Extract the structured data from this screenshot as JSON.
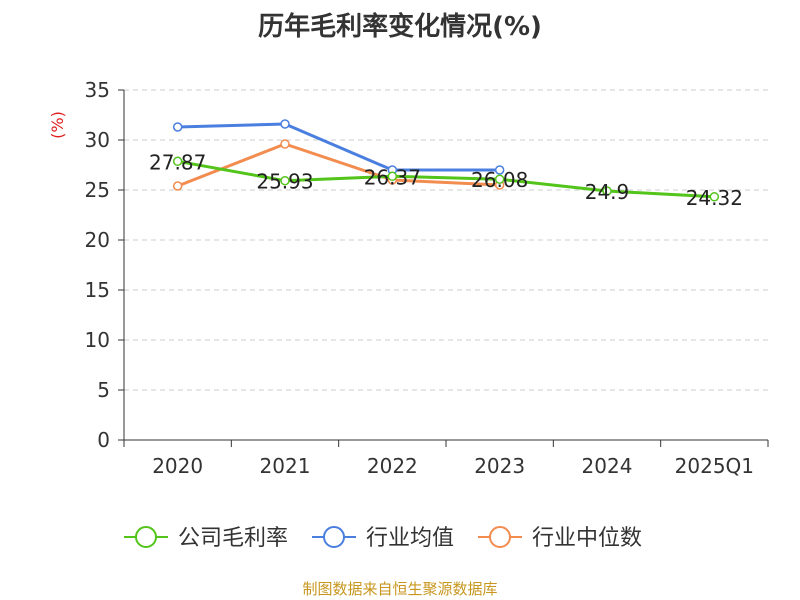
{
  "chart_data": {
    "type": "line",
    "title": "历年毛利率变化情况(%)",
    "ylabel": "(%)",
    "ylim": [
      0,
      35
    ],
    "yticks": [
      0,
      5,
      10,
      15,
      20,
      25,
      30,
      35
    ],
    "categories": [
      "2020",
      "2021",
      "2022",
      "2023",
      "2024",
      "2025Q1"
    ],
    "grid": true,
    "legend_position": "bottom",
    "series": [
      {
        "name": "公司毛利率",
        "color": "#52c41a",
        "values": [
          27.87,
          25.93,
          26.37,
          26.08,
          24.9,
          24.32
        ],
        "labels": [
          "27.87",
          "25.93",
          "26.37",
          "26.08",
          "24.9",
          "24.32"
        ]
      },
      {
        "name": "行业均值",
        "color": "#4a7fe0",
        "values": [
          31.3,
          31.6,
          27.0,
          27.0,
          null,
          null
        ]
      },
      {
        "name": "行业中位数",
        "color": "#f28c4f",
        "values": [
          25.4,
          29.6,
          26.0,
          25.5,
          null,
          null
        ]
      }
    ]
  },
  "source": "制图数据来自恒生聚源数据库"
}
